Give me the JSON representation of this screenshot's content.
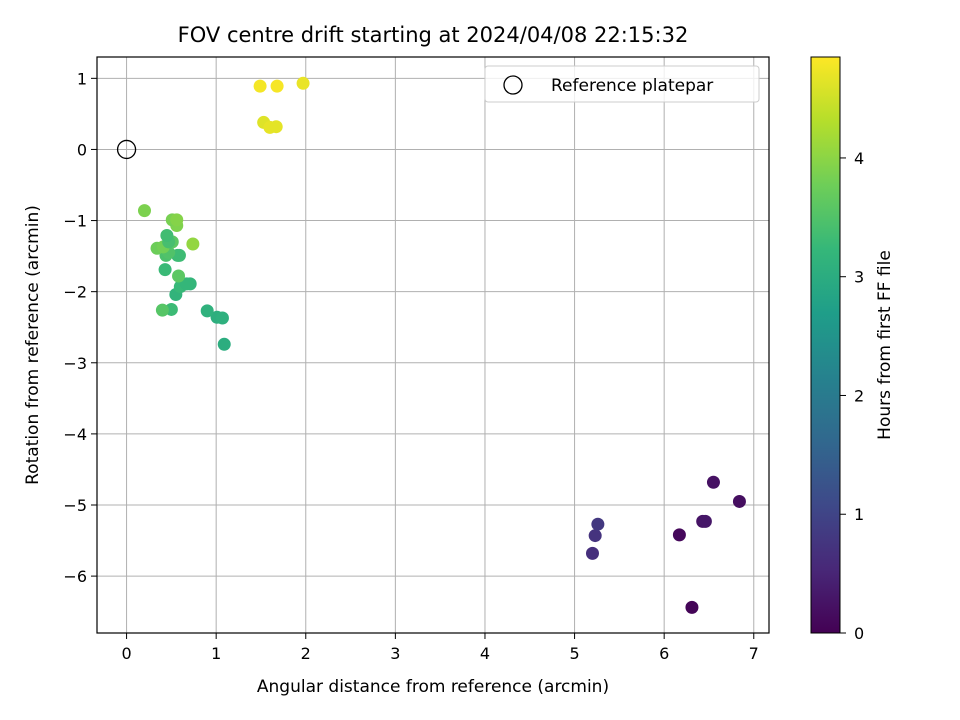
{
  "chart_data": {
    "type": "scatter",
    "title": "FOV centre drift starting at 2024/04/08 22:15:32",
    "xlabel": "Angular distance from reference (arcmin)",
    "ylabel": "Rotation from reference (arcmin)",
    "xlim": [
      -0.33,
      7.17
    ],
    "ylim": [
      -6.8,
      1.3
    ],
    "xticks": [
      0,
      1,
      2,
      3,
      4,
      5,
      6,
      7
    ],
    "yticks": [
      1,
      0,
      -1,
      -2,
      -3,
      -4,
      -5,
      -6
    ],
    "ytick_labels": [
      "1",
      "0",
      "−1",
      "−2",
      "−3",
      "−4",
      "−5",
      "−6"
    ],
    "grid": true,
    "legend": {
      "position": "top-right",
      "entries": [
        {
          "label": "Reference platepar",
          "marker": "open-circle"
        }
      ]
    },
    "reference_point": {
      "x": 0,
      "y": 0
    },
    "colorbar": {
      "label": "Hours from first FF file",
      "range": [
        0,
        4.85
      ],
      "ticks": [
        0,
        1,
        2,
        3,
        4
      ],
      "colormap": [
        "#440154",
        "#482878",
        "#3e4989",
        "#31688e",
        "#26828e",
        "#1f9e89",
        "#35b779",
        "#6ece58",
        "#b5de2b",
        "#fde725"
      ]
    },
    "points": [
      {
        "x": 6.31,
        "y": -6.44,
        "c": 0.05
      },
      {
        "x": 6.17,
        "y": -5.42,
        "c": 0.1
      },
      {
        "x": 6.43,
        "y": -5.23,
        "c": 0.25
      },
      {
        "x": 6.46,
        "y": -5.23,
        "c": 0.3
      },
      {
        "x": 6.84,
        "y": -4.95,
        "c": 0.18
      },
      {
        "x": 6.55,
        "y": -4.68,
        "c": 0.22
      },
      {
        "x": 5.2,
        "y": -5.68,
        "c": 0.65
      },
      {
        "x": 5.23,
        "y": -5.43,
        "c": 0.72
      },
      {
        "x": 5.26,
        "y": -5.27,
        "c": 0.8
      },
      {
        "x": 1.09,
        "y": -2.74,
        "c": 3.02
      },
      {
        "x": 1.01,
        "y": -2.36,
        "c": 3.05
      },
      {
        "x": 1.07,
        "y": -2.37,
        "c": 3.08
      },
      {
        "x": 0.9,
        "y": -2.27,
        "c": 3.1
      },
      {
        "x": 0.5,
        "y": -2.25,
        "c": 3.3
      },
      {
        "x": 0.4,
        "y": -2.26,
        "c": 3.55
      },
      {
        "x": 0.55,
        "y": -2.04,
        "c": 3.15
      },
      {
        "x": 0.6,
        "y": -1.93,
        "c": 3.25
      },
      {
        "x": 0.71,
        "y": -1.89,
        "c": 3.2
      },
      {
        "x": 0.67,
        "y": -1.89,
        "c": 3.22
      },
      {
        "x": 0.58,
        "y": -1.78,
        "c": 3.6
      },
      {
        "x": 0.43,
        "y": -1.69,
        "c": 3.28
      },
      {
        "x": 0.57,
        "y": -1.49,
        "c": 3.3
      },
      {
        "x": 0.59,
        "y": -1.49,
        "c": 3.32
      },
      {
        "x": 0.44,
        "y": -1.49,
        "c": 3.45
      },
      {
        "x": 0.47,
        "y": -1.45,
        "c": 3.5
      },
      {
        "x": 0.34,
        "y": -1.39,
        "c": 3.75
      },
      {
        "x": 0.41,
        "y": -1.37,
        "c": 3.8
      },
      {
        "x": 0.51,
        "y": -1.3,
        "c": 3.6
      },
      {
        "x": 0.47,
        "y": -1.3,
        "c": 3.4
      },
      {
        "x": 0.45,
        "y": -1.21,
        "c": 3.35
      },
      {
        "x": 0.74,
        "y": -1.33,
        "c": 4.05
      },
      {
        "x": 0.56,
        "y": -1.07,
        "c": 3.9
      },
      {
        "x": 0.51,
        "y": -0.99,
        "c": 3.85
      },
      {
        "x": 0.56,
        "y": -0.99,
        "c": 3.95
      },
      {
        "x": 0.2,
        "y": -0.86,
        "c": 3.88
      },
      {
        "x": 1.49,
        "y": 0.89,
        "c": 4.78
      },
      {
        "x": 1.68,
        "y": 0.89,
        "c": 4.8
      },
      {
        "x": 1.97,
        "y": 0.93,
        "c": 4.7
      },
      {
        "x": 1.53,
        "y": 0.38,
        "c": 4.62
      },
      {
        "x": 1.6,
        "y": 0.31,
        "c": 4.68
      },
      {
        "x": 1.67,
        "y": 0.32,
        "c": 4.66
      }
    ]
  }
}
